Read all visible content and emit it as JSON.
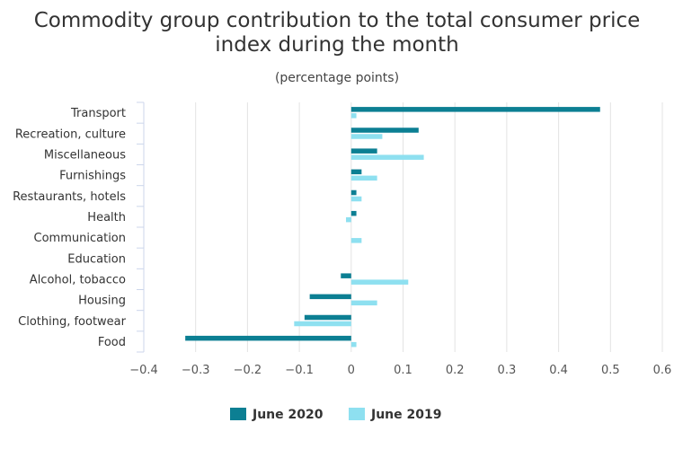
{
  "chart_data": {
    "type": "bar",
    "orientation": "horizontal",
    "title_lines": [
      "Commodity group contribution to the total consumer price",
      "index during the month"
    ],
    "subtitle": "(percentage points)",
    "categories": [
      "Transport",
      "Recreation, culture",
      "Miscellaneous",
      "Furnishings",
      "Restaurants, hotels",
      "Health",
      "Communication",
      "Education",
      "Alcohol, tobacco",
      "Housing",
      "Clothing, footwear",
      "Food"
    ],
    "series": [
      {
        "name": "June 2020",
        "color": "#0c7f93",
        "values": [
          0.48,
          0.13,
          0.05,
          0.02,
          0.01,
          0.01,
          0.0,
          0.0,
          -0.02,
          -0.08,
          -0.09,
          -0.32
        ]
      },
      {
        "name": "June 2019",
        "color": "#8ee0f0",
        "values": [
          0.01,
          0.06,
          0.14,
          0.05,
          0.02,
          -0.01,
          0.02,
          0.0,
          0.11,
          0.05,
          -0.11,
          0.01
        ]
      }
    ],
    "xlim": [
      -0.4,
      0.6
    ],
    "xticks": [
      "−0.4",
      "−0.3",
      "−0.2",
      "−0.1",
      "0",
      "0.1",
      "0.2",
      "0.3",
      "0.4",
      "0.5",
      "0.6"
    ],
    "grid": true,
    "legend_position": "bottom"
  }
}
